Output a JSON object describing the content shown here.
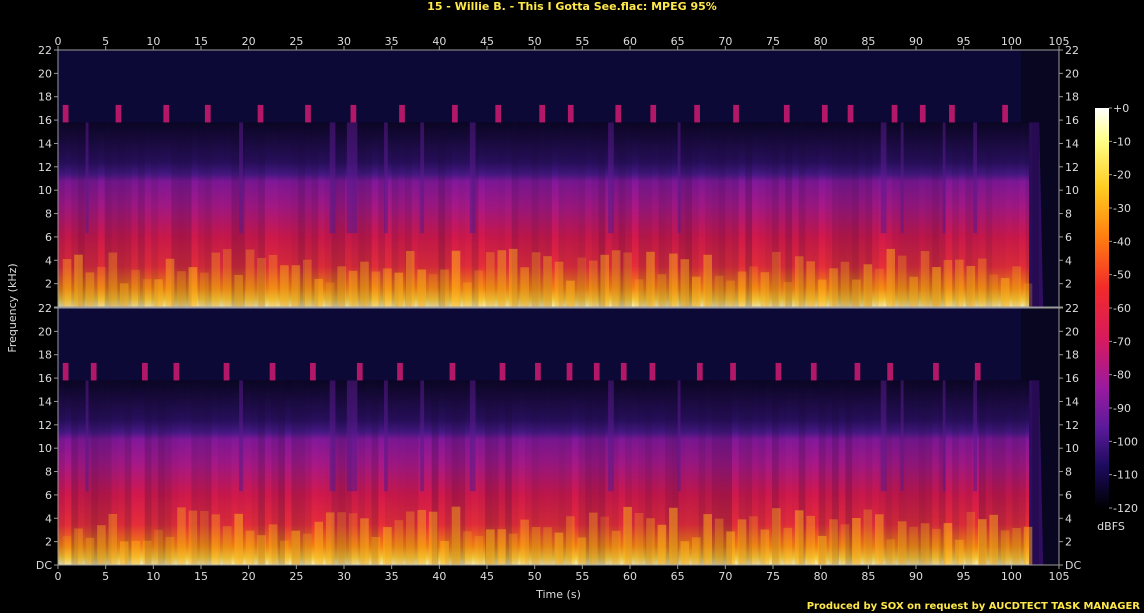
{
  "title": "15 - Willie B. - This I Gotta See.flac: MPEG 95%",
  "credit": "Produced by SOX on request by AUCDTECT TASK MANAGER",
  "colors": {
    "background": "#000000",
    "text": "#dddddd",
    "title": "#ffe84a",
    "axis": "#9a9a9a"
  },
  "chart_data": {
    "type": "heatmap",
    "xlabel": "Time (s)",
    "ylabel": "Frequency (kHz)",
    "xlim": [
      0,
      105
    ],
    "ylim": [
      0,
      22
    ],
    "x_ticks": [
      0,
      5,
      10,
      15,
      20,
      25,
      30,
      35,
      40,
      45,
      50,
      55,
      60,
      65,
      70,
      75,
      80,
      85,
      90,
      95,
      100,
      105
    ],
    "y_ticks": [
      "DC",
      "2",
      "4",
      "6",
      "8",
      "10",
      "12",
      "14",
      "16",
      "18",
      "20",
      "22"
    ],
    "channels": 2,
    "lowpass_cutoff_khz": 15.8,
    "peak_extent_khz": 17.3,
    "track_end_s": 102.5,
    "colorbar": {
      "label": "dBFS",
      "range": [
        -120,
        0
      ],
      "ticks": [
        "+0",
        "-10",
        "-20",
        "-30",
        "-40",
        "-50",
        "-60",
        "-70",
        "-80",
        "-90",
        "-100",
        "-110",
        "-120"
      ]
    }
  }
}
